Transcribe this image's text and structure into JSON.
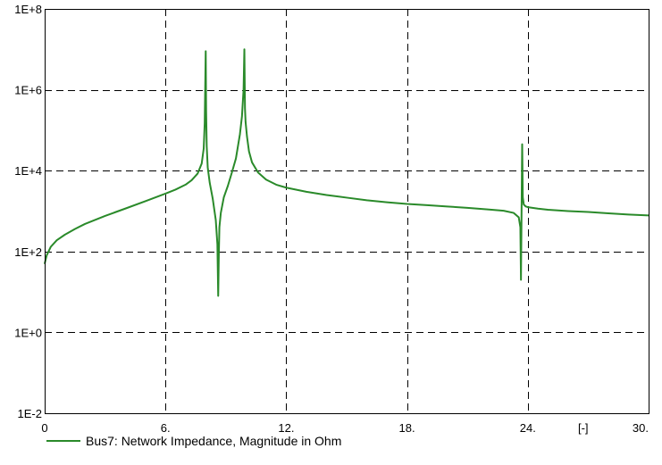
{
  "chart_data": {
    "type": "line",
    "xlim": [
      0,
      30
    ],
    "ylim": [
      -2,
      8
    ],
    "y_scale": "log10",
    "grid": true,
    "grid_style": "dashed",
    "x_ticks": [
      "0",
      "6.",
      "12.",
      "18.",
      "24.",
      "30."
    ],
    "x_tick_values": [
      0,
      6,
      12,
      18,
      24,
      30
    ],
    "x_unit_label": "[-]",
    "y_ticks": [
      "1E-2",
      "1E+0",
      "1E+2",
      "1E+4",
      "1E+6",
      "1E+8"
    ],
    "y_tick_values": [
      -2,
      0,
      2,
      4,
      6,
      8
    ],
    "legend_position": "bottom-left",
    "series": [
      {
        "name": "Bus7: Network Impedance, Magnitude in Ohm",
        "color": "#2a8a2a",
        "x": [
          0,
          0.1,
          0.3,
          0.6,
          1.0,
          1.5,
          2.0,
          3.0,
          4.0,
          5.0,
          6.0,
          6.5,
          7.0,
          7.3,
          7.6,
          7.8,
          7.9,
          7.95,
          8.0,
          8.02,
          8.05,
          8.1,
          8.2,
          8.35,
          8.5,
          8.58,
          8.62,
          8.65,
          8.68,
          8.75,
          8.9,
          9.1,
          9.3,
          9.5,
          9.7,
          9.8,
          9.88,
          9.92,
          9.95,
          9.98,
          10.05,
          10.15,
          10.3,
          10.6,
          11.0,
          11.5,
          12.0,
          13.0,
          14.0,
          15.0,
          16.0,
          17.0,
          18.0,
          19.0,
          20.0,
          21.0,
          22.0,
          22.8,
          23.3,
          23.55,
          23.63,
          23.66,
          23.69,
          23.72,
          23.75,
          23.8,
          23.9,
          24.0,
          24.5,
          25.0,
          26.0,
          27.0,
          28.0,
          29.0,
          30.0
        ],
        "y": [
          50,
          80,
          130,
          190,
          260,
          360,
          480,
          760,
          1150,
          1750,
          2700,
          3400,
          4500,
          5800,
          8500,
          15000,
          35000,
          150000,
          9000000,
          300000,
          40000,
          12000,
          5000,
          2000,
          600,
          150,
          8,
          80,
          400,
          900,
          2200,
          4200,
          9000,
          20000,
          80000,
          220000,
          1000000,
          10000000,
          350000,
          160000,
          70000,
          30000,
          16000,
          9000,
          6000,
          4500,
          3800,
          3000,
          2500,
          2150,
          1850,
          1650,
          1500,
          1400,
          1300,
          1200,
          1100,
          1020,
          900,
          700,
          400,
          20,
          1000,
          45000,
          2200,
          1450,
          1300,
          1250,
          1150,
          1080,
          1000,
          950,
          880,
          820,
          780
        ]
      }
    ]
  }
}
